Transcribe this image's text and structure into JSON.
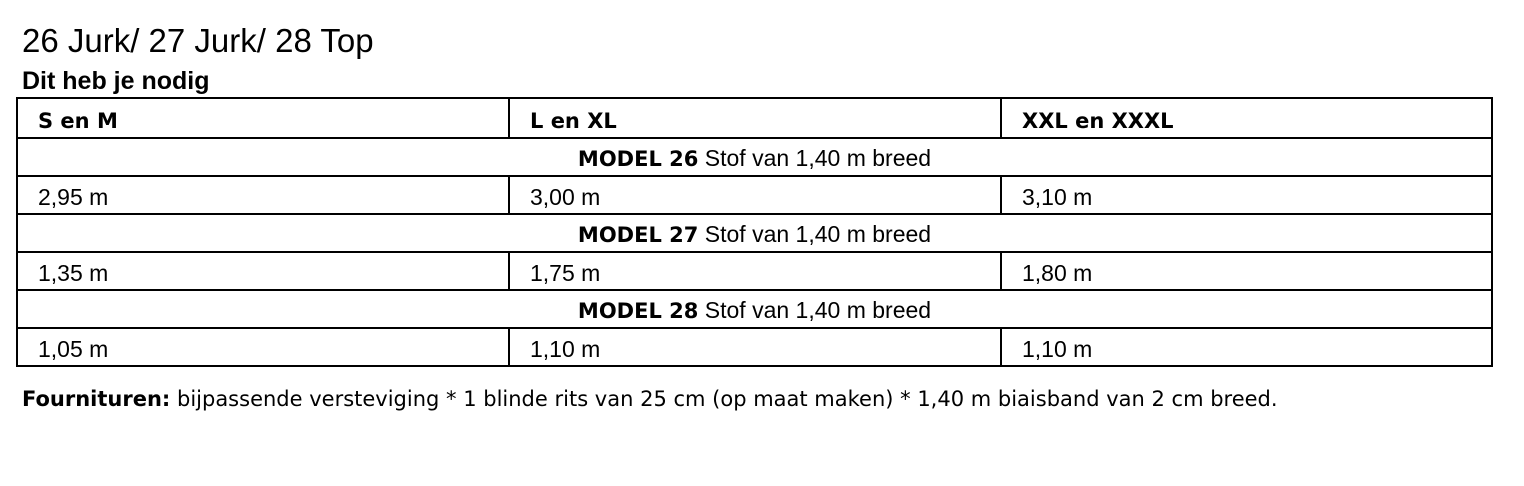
{
  "title": "26 Jurk/ 27 Jurk/ 28 Top",
  "subtitle": "Dit heb je nodig",
  "table": {
    "headers": [
      "S en M",
      "L en XL",
      "XXL en XXXL"
    ],
    "models": [
      {
        "label": "MODEL 26",
        "desc": " Stof van 1,40 m breed",
        "values": [
          "2,95 m",
          "3,00 m",
          "3,10 m"
        ]
      },
      {
        "label": "MODEL 27",
        "desc": " Stof van 1,40 m breed",
        "values": [
          "1,35 m",
          "1,75 m",
          "1,80 m"
        ]
      },
      {
        "label": "MODEL 28",
        "desc": " Stof van 1,40 m breed",
        "values": [
          "1,05 m",
          "1,10 m",
          "1,10 m"
        ]
      }
    ]
  },
  "footer": {
    "label": "Fournituren:",
    "text": " bijpassende versteviging * 1 blinde rits van 25 cm (op maat maken) * 1,40 m biaisband van 2 cm breed."
  }
}
